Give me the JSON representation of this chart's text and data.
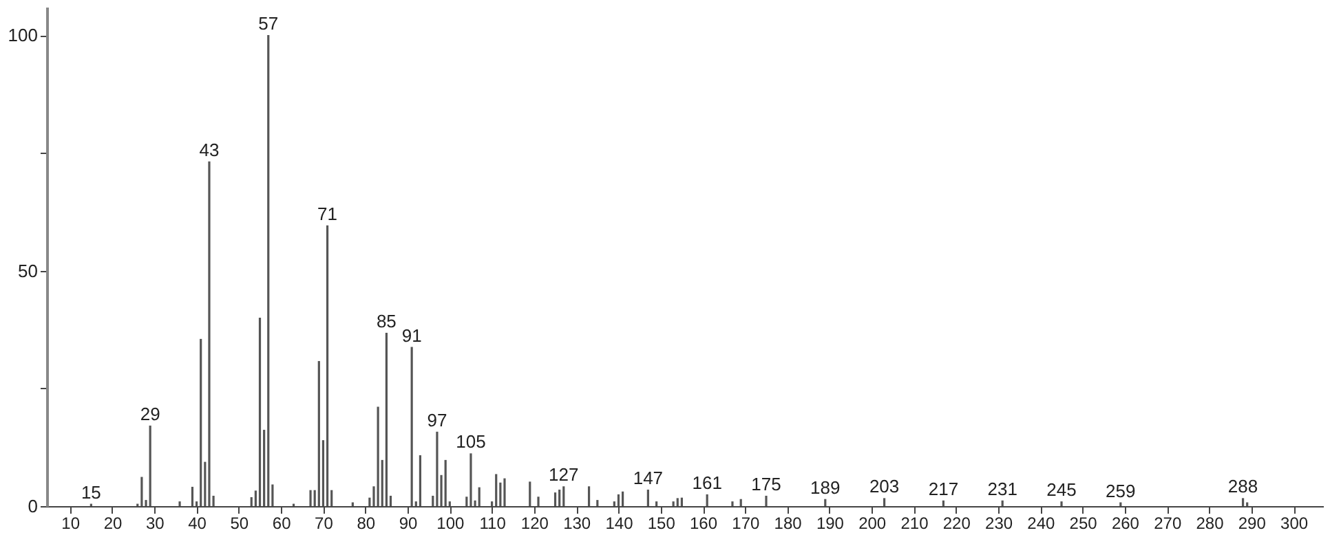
{
  "chart_data": {
    "type": "bar",
    "x": [
      15,
      26,
      27,
      28,
      29,
      36,
      39,
      40,
      41,
      42,
      43,
      44,
      53,
      54,
      55,
      56,
      57,
      58,
      63,
      67,
      68,
      69,
      70,
      71,
      72,
      77,
      81,
      82,
      83,
      84,
      85,
      86,
      91,
      92,
      93,
      96,
      97,
      98,
      99,
      100,
      104,
      105,
      106,
      107,
      110,
      111,
      112,
      113,
      119,
      121,
      125,
      126,
      127,
      133,
      135,
      139,
      140,
      141,
      147,
      149,
      153,
      154,
      155,
      161,
      167,
      169,
      175,
      189,
      203,
      217,
      231,
      245,
      259,
      288,
      289
    ],
    "values": [
      0.5,
      0.5,
      6.2,
      1.3,
      17.1,
      1,
      4.1,
      1,
      35.5,
      9.4,
      73.2,
      2.2,
      1.9,
      3.3,
      40,
      16.2,
      100,
      4.6,
      0.5,
      3.4,
      3.4,
      30.8,
      14,
      59.6,
      3.4,
      0.8,
      1.8,
      4.2,
      21.1,
      9.8,
      36.8,
      2.2,
      33.8,
      1,
      10.8,
      2.2,
      15.8,
      6.6,
      9.8,
      1,
      2,
      11.2,
      1.2,
      4,
      1,
      6.8,
      5,
      5.9,
      5.2,
      2,
      2.9,
      3.5,
      4.2,
      4.2,
      1.3,
      1,
      2.5,
      3.1,
      3.5,
      1,
      1,
      1.7,
      1.8,
      2.5,
      1,
      1.5,
      2.2,
      1.5,
      1.7,
      1.2,
      1.2,
      1,
      0.8,
      1.7,
      0.8
    ],
    "color": "#555555",
    "xlim": [
      4.5,
      307
    ],
    "xticks": [
      10,
      20,
      30,
      40,
      50,
      60,
      70,
      80,
      90,
      100,
      110,
      120,
      130,
      140,
      150,
      160,
      170,
      180,
      190,
      200,
      210,
      220,
      230,
      240,
      250,
      260,
      270,
      280,
      290,
      300
    ],
    "ylim": [
      0,
      106
    ],
    "yticks": [
      0,
      {
        "value": 25,
        "label": null
      },
      50,
      {
        "value": 75,
        "label": null
      },
      100
    ],
    "grid": false,
    "annotations": [
      {
        "text": "15",
        "x": 15,
        "y": 0.5
      },
      {
        "text": "29",
        "x": 29,
        "y": 17.1
      },
      {
        "text": "43",
        "x": 43,
        "y": 73.2
      },
      {
        "text": "57",
        "x": 57,
        "y": 100
      },
      {
        "text": "71",
        "x": 71,
        "y": 59.6
      },
      {
        "text": "85",
        "x": 85,
        "y": 36.8
      },
      {
        "text": "91",
        "x": 91,
        "y": 33.8
      },
      {
        "text": "97",
        "x": 97,
        "y": 15.8
      },
      {
        "text": "105",
        "x": 105,
        "y": 11.2
      },
      {
        "text": "127",
        "x": 127,
        "y": 4.2
      },
      {
        "text": "147",
        "x": 147,
        "y": 3.5
      },
      {
        "text": "161",
        "x": 161,
        "y": 2.5
      },
      {
        "text": "175",
        "x": 175,
        "y": 2.2
      },
      {
        "text": "189",
        "x": 189,
        "y": 1.5
      },
      {
        "text": "203",
        "x": 203,
        "y": 1.7
      },
      {
        "text": "217",
        "x": 217,
        "y": 1.2
      },
      {
        "text": "231",
        "x": 231,
        "y": 1.2
      },
      {
        "text": "245",
        "x": 245,
        "y": 1
      },
      {
        "text": "259",
        "x": 259,
        "y": 0.8
      },
      {
        "text": "288",
        "x": 288,
        "y": 1.7
      }
    ]
  }
}
